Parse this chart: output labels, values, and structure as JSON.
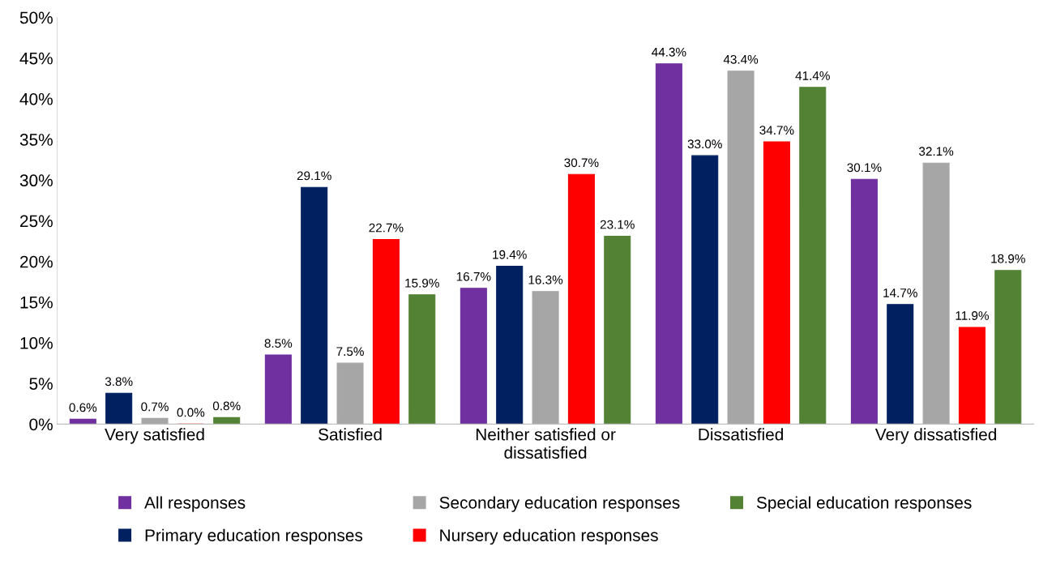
{
  "chart_data": {
    "type": "bar",
    "categories": [
      "Very satisfied",
      "Satisfied",
      "Neither satisfied or dissatisfied",
      "Dissatisfied",
      "Very dissatisfied"
    ],
    "series": [
      {
        "name": "All responses",
        "color": "#7030a0",
        "values": [
          0.6,
          8.5,
          16.7,
          44.3,
          30.1
        ],
        "value_labels": [
          "0.6%",
          "8.5%",
          "16.7%",
          "44.3%",
          "30.1%"
        ]
      },
      {
        "name": "Primary education responses",
        "color": "#002060",
        "values": [
          3.8,
          29.1,
          19.4,
          33.0,
          14.7
        ],
        "value_labels": [
          "3.8%",
          "29.1%",
          "19.4%",
          "33.0%",
          "14.7%"
        ]
      },
      {
        "name": "Secondary education responses",
        "color": "#a6a6a6",
        "values": [
          0.7,
          7.5,
          16.3,
          43.4,
          32.1
        ],
        "value_labels": [
          "0.7%",
          "7.5%",
          "16.3%",
          "43.4%",
          "32.1%"
        ]
      },
      {
        "name": "Nursery education responses",
        "color": "#ff0000",
        "values": [
          0.0,
          22.7,
          30.7,
          34.7,
          11.9
        ],
        "value_labels": [
          "0.0%",
          "22.7%",
          "30.7%",
          "34.7%",
          "11.9%"
        ]
      },
      {
        "name": "Special education responses",
        "color": "#548235",
        "values": [
          0.8,
          15.9,
          23.1,
          41.4,
          18.9
        ],
        "value_labels": [
          "0.8%",
          "15.9%",
          "23.1%",
          "41.4%",
          "18.9%"
        ]
      }
    ],
    "ylim": [
      0,
      50
    ],
    "yticks": [
      {
        "value": 0,
        "label": "0%"
      },
      {
        "value": 5,
        "label": "5%"
      },
      {
        "value": 10,
        "label": "10%"
      },
      {
        "value": 15,
        "label": "15%"
      },
      {
        "value": 20,
        "label": "20%"
      },
      {
        "value": 25,
        "label": "25%"
      },
      {
        "value": 30,
        "label": "30%"
      },
      {
        "value": 35,
        "label": "35%"
      },
      {
        "value": 40,
        "label": "40%"
      },
      {
        "value": 45,
        "label": "45%"
      },
      {
        "value": 50,
        "label": "50%"
      }
    ],
    "grid": false,
    "legend": "bottom"
  }
}
